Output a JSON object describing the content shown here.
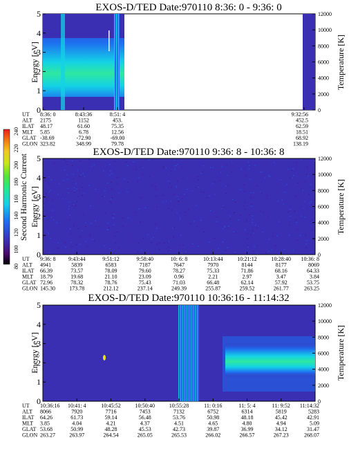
{
  "colors": {
    "background": "#3a2fb3",
    "colorbar": [
      "#000000",
      "#4b0a6e",
      "#3a2fb3",
      "#1e6ef0",
      "#14d2e6",
      "#1ee896",
      "#55e23c",
      "#c8e614",
      "#f0c81e",
      "#f07814",
      "#e61e1e"
    ]
  },
  "chart_data": [
    {
      "type": "heatmap",
      "title": "EXOS-D/TED   Date:970110  8:36: 0 - 9:36: 0",
      "ylabel": "Energy [eV]",
      "y2label": "Temperature [K]",
      "ylim": [
        0,
        5
      ],
      "y2lim": [
        0,
        12000
      ],
      "yticks": [
        "0",
        "1",
        "2",
        "3",
        "4",
        "5"
      ],
      "y2ticks": [
        "0",
        "2000",
        "4000",
        "6000",
        "8000",
        "10000",
        "12000"
      ],
      "data_extent": "8:36:0 - 8:52 and 9:31 - 9:32:56; blank between",
      "ephemeris": {
        "labels": [
          "UT",
          "ALT",
          "ILAT",
          "MLT",
          "GLAT",
          "GLON"
        ],
        "columns": [
          [
            "8:36: 0",
            "2175",
            "48.17",
            "5.85",
            "-38.69",
            "323.82"
          ],
          [
            "8:43:36",
            "1152",
            "61.60",
            "6.78",
            "-72.90",
            "348.99"
          ],
          [
            "8:51: 4",
            "453.",
            "75.35",
            "12.56",
            "-69.00",
            "79.78"
          ],
          [
            "9:32:56",
            "452.5",
            "62.59",
            "18.51",
            "68.92",
            "138.19"
          ]
        ]
      }
    },
    {
      "type": "heatmap",
      "title": "EXOS-D/TED   Date:970110  9:36: 8 - 10:36: 8",
      "ylabel": "Energy [eV]",
      "y2label": "Temperature [K]",
      "ylim": [
        0,
        5
      ],
      "y2lim": [
        0,
        12000
      ],
      "yticks": [
        "0",
        "1",
        "2",
        "3",
        "4",
        "5"
      ],
      "y2ticks": [
        "0",
        "2000",
        "4000",
        "6000",
        "8000",
        "10000",
        "12000"
      ],
      "ephemeris": {
        "labels": [
          "UT",
          "ALT",
          "ILAT",
          "MLT",
          "GLAT",
          "GLON"
        ],
        "columns": [
          [
            "9:36: 8",
            "4941",
            "66.39",
            "18.79",
            "72.96",
            "145.30"
          ],
          [
            "9:43:44",
            "5839",
            "73.57",
            "19.68",
            "78.32",
            "173.78"
          ],
          [
            "9:51:12",
            "6583",
            "78.09",
            "21.10",
            "78.76",
            "212.12"
          ],
          [
            "9:58:40",
            "7187",
            "79.60",
            "23.09",
            "75.43",
            "237.14"
          ],
          [
            "10: 6: 8",
            "7647",
            "78.27",
            "0.96",
            "71.03",
            "249.39"
          ],
          [
            "10:13:44",
            "7970",
            "75.33",
            "2.21",
            "66.48",
            "255.87"
          ],
          [
            "10:21:12",
            "8144",
            "71.86",
            "2.97",
            "62.14",
            "259.52"
          ],
          [
            "10:28:40",
            "8177",
            "68.16",
            "3.47",
            "57.92",
            "261.77"
          ],
          [
            "10:36: 8",
            "8069",
            "64.33",
            "3.84",
            "53.75",
            "263.25"
          ]
        ]
      }
    },
    {
      "type": "heatmap",
      "title": "EXOS-D/TED   Date:970110  10:36:16 - 11:14:32",
      "ylabel": "Energy [eV]",
      "y2label": "Temperature [K]",
      "ylim": [
        0,
        5
      ],
      "y2lim": [
        0,
        12000
      ],
      "yticks": [
        "0",
        "1",
        "2",
        "3",
        "4",
        "5"
      ],
      "y2ticks": [
        "0",
        "2000",
        "4000",
        "6000",
        "8000",
        "10000",
        "12000"
      ],
      "ephemeris": {
        "labels": [
          "UT",
          "ALT",
          "ILAT",
          "MLT",
          "GLAT",
          "GLON"
        ],
        "columns": [
          [
            "10:36:16",
            "8066",
            "64.26",
            "3.85",
            "53.68",
            "263.27"
          ],
          [
            "10:41: 4",
            "7920",
            "61.73",
            "4.04",
            "50.99",
            "263.97"
          ],
          [
            "10:45:52",
            "7716",
            "59.14",
            "4.21",
            "48.28",
            "264.54"
          ],
          [
            "10:50:40",
            "7453",
            "56.48",
            "4.37",
            "45.53",
            "265.05"
          ],
          [
            "10:55:28",
            "7132",
            "53.76",
            "4.51",
            "42.73",
            "265.53"
          ],
          [
            "11: 0:16",
            "6752",
            "50.98",
            "4.65",
            "39.87",
            "266.02"
          ],
          [
            "11: 5: 4",
            "6314",
            "48.18",
            "4.80",
            "36.99",
            "266.57"
          ],
          [
            "11: 9:52",
            "5819",
            "45.42",
            "4.94",
            "34.12",
            "267.23"
          ],
          [
            "11:14:32",
            "5283",
            "42.91",
            "5.09",
            "31.47",
            "268.07"
          ]
        ]
      }
    }
  ],
  "colorbar": {
    "label": "Second Harmonic Current",
    "ticks": [
      "80",
      "100",
      "120",
      "140",
      "160",
      "180",
      "200",
      "220",
      "240"
    ]
  }
}
